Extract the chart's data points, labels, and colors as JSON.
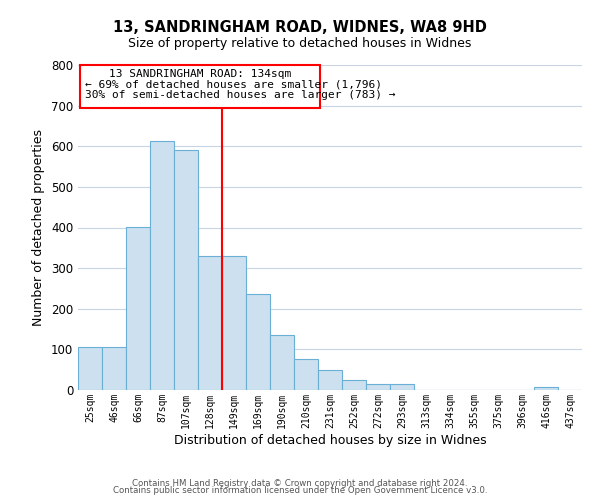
{
  "title": "13, SANDRINGHAM ROAD, WIDNES, WA8 9HD",
  "subtitle": "Size of property relative to detached houses in Widnes",
  "xlabel": "Distribution of detached houses by size in Widnes",
  "ylabel": "Number of detached properties",
  "bar_labels": [
    "25sqm",
    "46sqm",
    "66sqm",
    "87sqm",
    "107sqm",
    "128sqm",
    "149sqm",
    "169sqm",
    "190sqm",
    "210sqm",
    "231sqm",
    "252sqm",
    "272sqm",
    "293sqm",
    "313sqm",
    "334sqm",
    "355sqm",
    "375sqm",
    "396sqm",
    "416sqm",
    "437sqm"
  ],
  "bar_values": [
    105,
    107,
    402,
    613,
    591,
    330,
    330,
    237,
    135,
    76,
    50,
    25,
    15,
    15,
    0,
    0,
    0,
    0,
    0,
    7,
    0
  ],
  "bar_color": "#cce0f0",
  "bar_edge_color": "#6aafd6",
  "red_line_x": 6.0,
  "ylim": [
    0,
    800
  ],
  "yticks": [
    0,
    100,
    200,
    300,
    400,
    500,
    600,
    700,
    800
  ],
  "annotation_line1": "13 SANDRINGHAM ROAD: 134sqm",
  "annotation_line2": "← 69% of detached houses are smaller (1,796)",
  "annotation_line3": "30% of semi-detached houses are larger (783) →",
  "footer1": "Contains HM Land Registry data © Crown copyright and database right 2024.",
  "footer2": "Contains public sector information licensed under the Open Government Licence v3.0.",
  "background_color": "#ffffff",
  "grid_color": "#c8d4e4"
}
